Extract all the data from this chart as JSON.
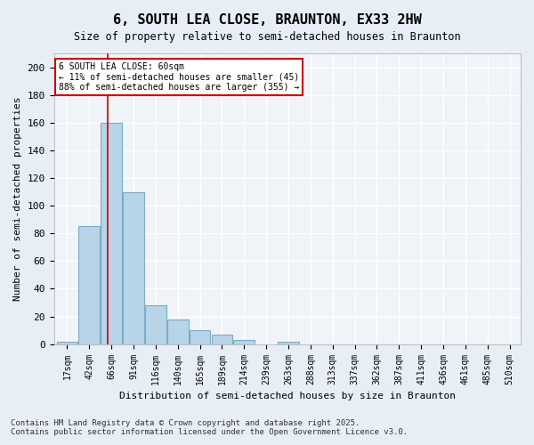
{
  "title": "6, SOUTH LEA CLOSE, BRAUNTON, EX33 2HW",
  "subtitle": "Size of property relative to semi-detached houses in Braunton",
  "xlabel": "Distribution of semi-detached houses by size in Braunton",
  "ylabel": "Number of semi-detached properties",
  "bins": [
    "17sqm",
    "42sqm",
    "66sqm",
    "91sqm",
    "116sqm",
    "140sqm",
    "165sqm",
    "189sqm",
    "214sqm",
    "239sqm",
    "263sqm",
    "288sqm",
    "313sqm",
    "337sqm",
    "362sqm",
    "387sqm",
    "411sqm",
    "436sqm",
    "461sqm",
    "485sqm",
    "510sqm"
  ],
  "values": [
    2,
    85,
    160,
    110,
    28,
    18,
    10,
    7,
    3,
    0,
    2,
    0,
    0,
    0,
    0,
    0,
    0,
    0,
    0,
    0,
    0
  ],
  "bar_color": "#b8d4e8",
  "bar_edge_color": "#7aacc8",
  "property_line_x": 1.85,
  "annotation_title": "6 SOUTH LEA CLOSE: 60sqm",
  "annotation_line1": "← 11% of semi-detached houses are smaller (45)",
  "annotation_line2": "88% of semi-detached houses are larger (355) →",
  "annotation_box_color": "#cc0000",
  "vline_color": "#cc0000",
  "ylim": [
    0,
    210
  ],
  "yticks": [
    0,
    20,
    40,
    60,
    80,
    100,
    120,
    140,
    160,
    180,
    200
  ],
  "bg_color": "#e8eef5",
  "plot_bg_color": "#f0f4f8",
  "grid_color": "#ffffff",
  "footer_line1": "Contains HM Land Registry data © Crown copyright and database right 2025.",
  "footer_line2": "Contains public sector information licensed under the Open Government Licence v3.0."
}
